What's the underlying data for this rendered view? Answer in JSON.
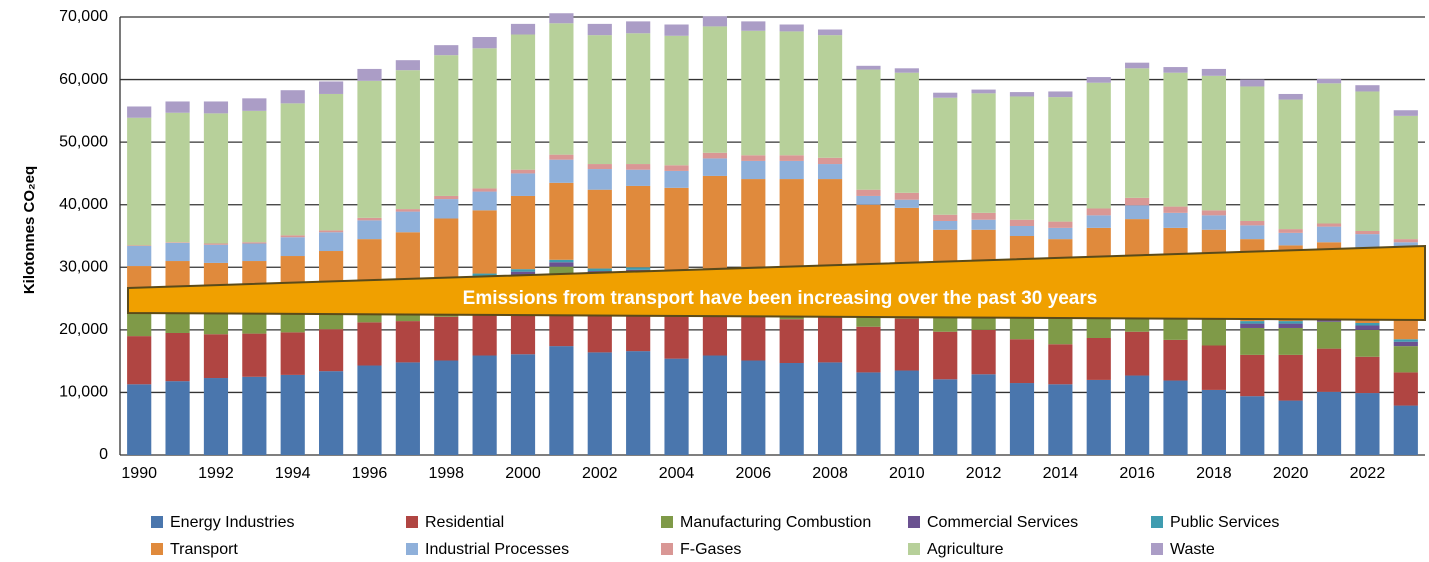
{
  "chart_data": {
    "type": "stacked_bar",
    "y_label": "Kilotonnes CO₂eq",
    "annotation": "Emissions from transport have been increasing over the past 30 years",
    "categories": [
      "1990",
      null,
      "1992",
      null,
      "1994",
      null,
      "1996",
      null,
      "1998",
      null,
      "2000",
      null,
      "2002",
      null,
      "2004",
      null,
      "2006",
      null,
      "2008",
      null,
      "2010",
      null,
      "2012",
      null,
      "2014",
      null,
      "2016",
      null,
      "2018",
      null,
      "2020",
      null,
      "2022",
      null
    ],
    "ylim": [
      0,
      70000
    ],
    "yticks": [
      0,
      {
        "value": 10000,
        "label": "10,000"
      },
      {
        "value": 20000,
        "label": "20,000"
      },
      {
        "value": 30000,
        "label": "30,000"
      },
      {
        "value": 40000,
        "label": "40,000"
      },
      {
        "value": 50000,
        "label": "50,000"
      },
      {
        "value": 60000,
        "label": "60,000"
      },
      {
        "value": 70000,
        "label": "70,000"
      }
    ],
    "grid": true,
    "legend": "bottom",
    "series": [
      {
        "name": "Energy Industries",
        "color": "#4a76ad",
        "values": [
          11300,
          11800,
          12300,
          12500,
          12800,
          13400,
          14300,
          14800,
          15100,
          15900,
          16100,
          17400,
          16400,
          16600,
          15400,
          15900,
          15100,
          14700,
          14800,
          13200,
          13500,
          12100,
          12900,
          11500,
          11300,
          12000,
          12700,
          11900,
          10400,
          9400,
          8700,
          10100,
          9900,
          7900
        ]
      },
      {
        "name": "Residential",
        "color": "#b04542",
        "values": [
          7700,
          7700,
          7000,
          6900,
          6800,
          6700,
          6900,
          6600,
          7000,
          7000,
          7000,
          7200,
          6800,
          6800,
          7000,
          7200,
          7300,
          7000,
          7500,
          7300,
          8300,
          7600,
          7100,
          7000,
          6400,
          6700,
          7000,
          6500,
          7100,
          6600,
          7300,
          6900,
          5800,
          5300
        ]
      },
      {
        "name": "Manufacturing Combustion",
        "color": "#7f9a48",
        "values": [
          5000,
          5000,
          5000,
          5000,
          5000,
          5000,
          5000,
          5000,
          5000,
          5000,
          5500,
          5500,
          5500,
          5500,
          5500,
          5500,
          5500,
          5500,
          5500,
          4500,
          4500,
          4300,
          4300,
          4300,
          4300,
          4300,
          4300,
          4300,
          4300,
          4300,
          4300,
          4300,
          4300,
          4200
        ]
      },
      {
        "name": "Commercial Services",
        "color": "#6a5190",
        "values": [
          700,
          700,
          700,
          700,
          700,
          700,
          700,
          700,
          700,
          700,
          700,
          700,
          700,
          700,
          700,
          700,
          700,
          700,
          700,
          700,
          700,
          700,
          700,
          700,
          700,
          700,
          700,
          700,
          700,
          700,
          700,
          700,
          700,
          700
        ]
      },
      {
        "name": "Public Services",
        "color": "#3f9cb0",
        "values": [
          400,
          400,
          400,
          400,
          400,
          400,
          400,
          400,
          400,
          400,
          400,
          400,
          400,
          400,
          400,
          400,
          400,
          400,
          400,
          400,
          400,
          400,
          400,
          400,
          400,
          400,
          400,
          400,
          400,
          400,
          400,
          400,
          400,
          400
        ]
      },
      {
        "name": "Transport",
        "color": "#e08a3c",
        "values": [
          5100,
          5400,
          5300,
          5500,
          6100,
          6400,
          7200,
          8100,
          9600,
          10100,
          11700,
          12300,
          12600,
          13000,
          13700,
          14900,
          15100,
          15800,
          15200,
          13900,
          12100,
          10900,
          10600,
          11100,
          11400,
          12200,
          12600,
          12500,
          13100,
          13100,
          12100,
          11600,
          11900,
          13500
        ]
      },
      {
        "name": "Industrial Processes",
        "color": "#8fb0da",
        "values": [
          3200,
          2900,
          2900,
          2800,
          3000,
          3000,
          3000,
          3300,
          3100,
          3000,
          3600,
          3700,
          3300,
          2600,
          2700,
          2800,
          2900,
          2900,
          2400,
          1400,
          1300,
          1400,
          1600,
          1600,
          1800,
          2000,
          2200,
          2400,
          2300,
          2200,
          2000,
          2500,
          2300,
          2000
        ]
      },
      {
        "name": "F-Gases",
        "color": "#d99795",
        "values": [
          100,
          100,
          200,
          200,
          300,
          300,
          400,
          400,
          500,
          500,
          600,
          800,
          800,
          900,
          900,
          900,
          900,
          900,
          1000,
          1000,
          1100,
          1000,
          1100,
          1000,
          1000,
          1100,
          1200,
          1000,
          800,
          700,
          600,
          500,
          500,
          500
        ]
      },
      {
        "name": "Agriculture",
        "color": "#b7d09a",
        "values": [
          20400,
          20700,
          20800,
          21000,
          21100,
          21800,
          21900,
          22200,
          22500,
          22400,
          21600,
          21000,
          20600,
          20900,
          20700,
          20200,
          19900,
          19800,
          19600,
          19200,
          19200,
          18700,
          19100,
          19700,
          19900,
          20100,
          20700,
          21400,
          21500,
          21500,
          20700,
          22400,
          22300,
          19700
        ]
      },
      {
        "name": "Waste",
        "color": "#ab9dc6",
        "values": [
          1800,
          1800,
          1900,
          2000,
          2100,
          2000,
          1900,
          1600,
          1600,
          1800,
          1700,
          1600,
          1800,
          1900,
          1800,
          1600,
          1500,
          1100,
          900,
          600,
          700,
          800,
          600,
          700,
          900,
          900,
          900,
          900,
          1100,
          1100,
          900,
          700,
          1000,
          900
        ]
      }
    ]
  }
}
